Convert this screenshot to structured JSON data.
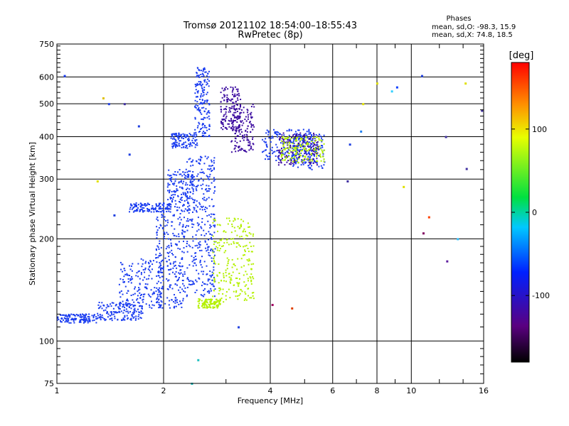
{
  "chart_data": {
    "type": "scatter",
    "title": "Tromsø 20121102 18:54:00–18:55:43",
    "subtitle": "RwPretec (8p)",
    "xlabel": "Frequency [MHz]",
    "ylabel": "Stationary phase Virtual Height [km]",
    "x_scale": "log",
    "y_scale": "log",
    "xlim": [
      1,
      16
    ],
    "ylim": [
      75,
      750
    ],
    "x_ticks": [
      1,
      2,
      4,
      6,
      8,
      10,
      16
    ],
    "y_ticks": [
      75,
      100,
      200,
      300,
      400,
      500,
      600,
      750
    ],
    "grid": true,
    "stats": {
      "heading": "Phases",
      "line_o": "mean, sd,O: -98.3, 15.9",
      "line_x": "mean, sd,X:  74.8, 18.5"
    },
    "colorbar": {
      "label": "[deg]",
      "ticks": [
        "100",
        "0",
        "-100"
      ],
      "tick_values": [
        100,
        0,
        -100
      ],
      "range": [
        -180,
        180
      ]
    },
    "series": [
      {
        "mode": "O",
        "phase_deg": -98,
        "color": "#1a3cf0",
        "clusters": [
          {
            "x": [
              1.0,
              1.3
            ],
            "y": [
              113,
              120
            ]
          },
          {
            "x": [
              1.3,
              1.75
            ],
            "y": [
              115,
              130
            ]
          },
          {
            "x": [
              1.5,
              2.0
            ],
            "y": [
              125,
              175
            ]
          },
          {
            "x": [
              1.9,
              2.3
            ],
            "y": [
              125,
              240
            ]
          },
          {
            "x": [
              1.6,
              2.1
            ],
            "y": [
              240,
              255
            ]
          },
          {
            "x": [
              2.05,
              2.45
            ],
            "y": [
              240,
              320
            ]
          },
          {
            "x": [
              2.3,
              2.8
            ],
            "y": [
              135,
              350
            ]
          },
          {
            "x": [
              2.45,
              2.7
            ],
            "y": [
              400,
              640
            ]
          },
          {
            "x": [
              2.1,
              2.5
            ],
            "y": [
              370,
              410
            ]
          },
          {
            "x": [
              3.8,
              5.3
            ],
            "y": [
              340,
              420
            ]
          },
          {
            "x": [
              4.6,
              5.7
            ],
            "y": [
              320,
              410
            ]
          }
        ]
      },
      {
        "mode": "O",
        "phase_deg": -150,
        "color": "#3c0ca0",
        "clusters": [
          {
            "x": [
              2.9,
              3.3
            ],
            "y": [
              420,
              560
            ]
          },
          {
            "x": [
              3.1,
              3.6
            ],
            "y": [
              360,
              500
            ]
          },
          {
            "x": [
              4.2,
              5.5
            ],
            "y": [
              330,
              410
            ]
          }
        ]
      },
      {
        "mode": "X",
        "phase_deg": 75,
        "color": "#b4f000",
        "clusters": [
          {
            "x": [
              2.5,
              2.9
            ],
            "y": [
              125,
              133
            ]
          },
          {
            "x": [
              2.75,
              3.6
            ],
            "y": [
              130,
              230
            ]
          },
          {
            "x": [
              4.3,
              5.7
            ],
            "y": [
              335,
              400
            ]
          }
        ]
      }
    ],
    "isolated_points": [
      {
        "x": 1.05,
        "y": 605,
        "color": "#1a3cf0"
      },
      {
        "x": 1.35,
        "y": 520,
        "color": "#e0c000"
      },
      {
        "x": 1.4,
        "y": 500,
        "color": "#2040e0"
      },
      {
        "x": 1.55,
        "y": 500,
        "color": "#4030a0"
      },
      {
        "x": 1.3,
        "y": 296,
        "color": "#e0e000"
      },
      {
        "x": 1.45,
        "y": 235,
        "color": "#2040e0"
      },
      {
        "x": 1.6,
        "y": 355,
        "color": "#2040e0"
      },
      {
        "x": 1.7,
        "y": 430,
        "color": "#2040e0"
      },
      {
        "x": 2.5,
        "y": 88,
        "color": "#20c0c0"
      },
      {
        "x": 2.4,
        "y": 75,
        "color": "#20c0c0"
      },
      {
        "x": 3.25,
        "y": 110,
        "color": "#2040e0"
      },
      {
        "x": 4.05,
        "y": 128,
        "color": "#a00060"
      },
      {
        "x": 4.6,
        "y": 125,
        "color": "#e04000"
      },
      {
        "x": 6.6,
        "y": 296,
        "color": "#4030a0"
      },
      {
        "x": 6.7,
        "y": 380,
        "color": "#2040e0"
      },
      {
        "x": 7.2,
        "y": 415,
        "color": "#2080f0"
      },
      {
        "x": 7.3,
        "y": 500,
        "color": "#e0e000"
      },
      {
        "x": 8.0,
        "y": 575,
        "color": "#e0e000"
      },
      {
        "x": 8.8,
        "y": 545,
        "color": "#30d0ff"
      },
      {
        "x": 9.1,
        "y": 560,
        "color": "#1040ff"
      },
      {
        "x": 9.5,
        "y": 285,
        "color": "#e0e000"
      },
      {
        "x": 10.7,
        "y": 605,
        "color": "#2040e0"
      },
      {
        "x": 10.8,
        "y": 208,
        "color": "#800060"
      },
      {
        "x": 11.2,
        "y": 232,
        "color": "#ff4000"
      },
      {
        "x": 12.5,
        "y": 400,
        "color": "#4030a0"
      },
      {
        "x": 12.6,
        "y": 172,
        "color": "#6020a0"
      },
      {
        "x": 13.5,
        "y": 200,
        "color": "#30c0ff"
      },
      {
        "x": 14.2,
        "y": 575,
        "color": "#e0e000"
      },
      {
        "x": 14.3,
        "y": 322,
        "color": "#4030a0"
      },
      {
        "x": 15.8,
        "y": 478,
        "color": "#4030a0"
      }
    ]
  }
}
